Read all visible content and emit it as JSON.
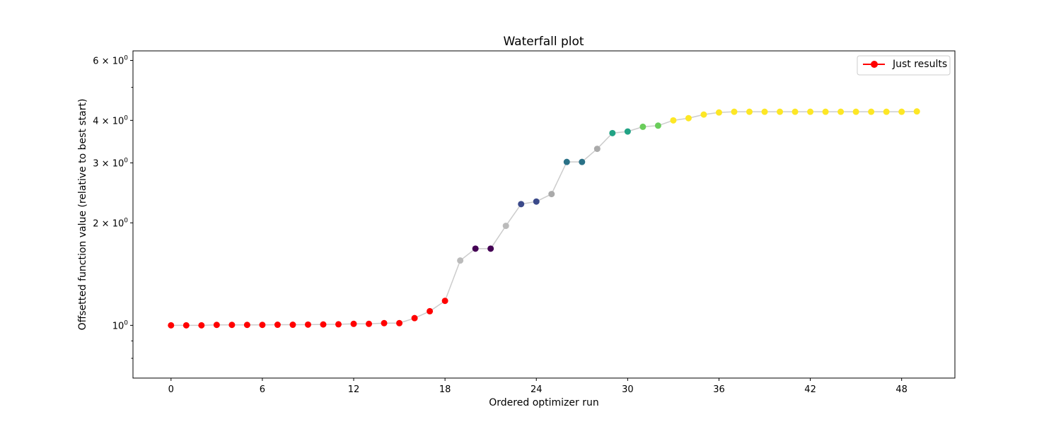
{
  "chart_data": {
    "type": "line",
    "title": "Waterfall plot",
    "xlabel": "Ordered optimizer run",
    "ylabel": "Offsetted function value (relative to best start)",
    "y_scale": "log",
    "xlim": [
      -2.5,
      51.5
    ],
    "ylim": [
      0.7,
      6.4
    ],
    "x_ticks": [
      0,
      6,
      12,
      18,
      24,
      30,
      36,
      42,
      48
    ],
    "y_ticks": [
      {
        "value": 1,
        "base": "10",
        "exp": "0"
      },
      {
        "value": 2,
        "base": "2 × 10",
        "exp": "0"
      },
      {
        "value": 3,
        "base": "3 × 10",
        "exp": "0"
      },
      {
        "value": 4,
        "base": "4 × 10",
        "exp": "0"
      },
      {
        "value": 6,
        "base": "6 × 10",
        "exp": "0"
      }
    ],
    "y_minor_ticks": [
      0.8,
      0.9,
      5
    ],
    "grid": false,
    "legend": {
      "position": "top-right",
      "entries": [
        {
          "name": "Just results",
          "color": "#ff0000"
        }
      ]
    },
    "line_color": "#cccccc",
    "x": [
      0,
      1,
      2,
      3,
      4,
      5,
      6,
      7,
      8,
      9,
      10,
      11,
      12,
      13,
      14,
      15,
      16,
      17,
      18,
      19,
      20,
      21,
      22,
      23,
      24,
      25,
      26,
      27,
      28,
      29,
      30,
      31,
      32,
      33,
      34,
      35,
      36,
      37,
      38,
      39,
      40,
      41,
      42,
      43,
      44,
      45,
      46,
      47,
      48,
      49
    ],
    "y": [
      1.0,
      1.0,
      1.0,
      1.003,
      1.003,
      1.003,
      1.003,
      1.004,
      1.004,
      1.005,
      1.006,
      1.007,
      1.01,
      1.01,
      1.015,
      1.015,
      1.05,
      1.1,
      1.18,
      1.55,
      1.68,
      1.68,
      1.96,
      2.27,
      2.31,
      2.43,
      3.02,
      3.02,
      3.3,
      3.67,
      3.71,
      3.83,
      3.86,
      4.0,
      4.06,
      4.16,
      4.22,
      4.24,
      4.24,
      4.24,
      4.24,
      4.24,
      4.24,
      4.24,
      4.24,
      4.24,
      4.24,
      4.24,
      4.24,
      4.25
    ],
    "point_colors": [
      "#ff0000",
      "#ff0000",
      "#ff0000",
      "#ff0000",
      "#ff0000",
      "#ff0000",
      "#ff0000",
      "#ff0000",
      "#ff0000",
      "#ff0000",
      "#ff0000",
      "#ff0000",
      "#ff0000",
      "#ff0000",
      "#ff0000",
      "#ff0000",
      "#ff0000",
      "#ff0000",
      "#ff0000",
      "#bbbbbb",
      "#440154",
      "#440154",
      "#bbbbbb",
      "#3b4a8a",
      "#3b4a8a",
      "#aaaaaa",
      "#2a7187",
      "#2a7187",
      "#aaaaaa",
      "#22a385",
      "#22a385",
      "#6acd5b",
      "#6acd5b",
      "#fde725",
      "#fde725",
      "#fde725",
      "#fde725",
      "#fde725",
      "#fde725",
      "#fde725",
      "#fde725",
      "#fde725",
      "#fde725",
      "#fde725",
      "#fde725",
      "#fde725",
      "#fde725",
      "#fde725",
      "#fde725",
      "#fde725"
    ]
  }
}
